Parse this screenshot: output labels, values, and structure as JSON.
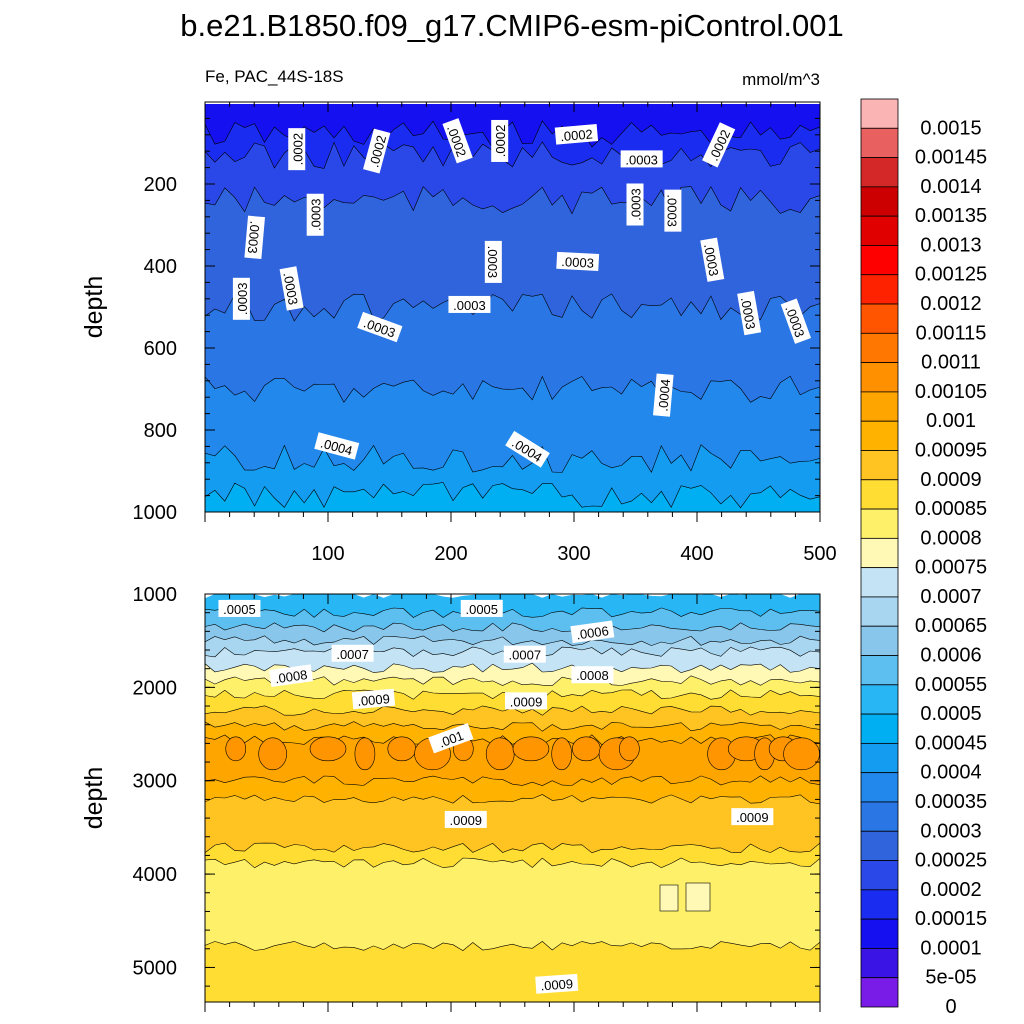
{
  "title": "b.e21.B1850.f09_g17.CMIP6-esm-piControl.001",
  "subtitle_left": "Fe, PAC_44S-18S",
  "subtitle_right": "mmol/m^3",
  "colorbar": {
    "levels": [
      "0.0015",
      "0.00145",
      "0.0014",
      "0.00135",
      "0.0013",
      "0.00125",
      "0.0012",
      "0.00115",
      "0.0011",
      "0.00105",
      "0.001",
      "0.00095",
      "0.0009",
      "0.00085",
      "0.0008",
      "0.00075",
      "0.0007",
      "0.00065",
      "0.0006",
      "0.00055",
      "0.0005",
      "0.00045",
      "0.0004",
      "0.00035",
      "0.0003",
      "0.00025",
      "0.0002",
      "0.00015",
      "0.0001",
      "5e-05",
      "0"
    ],
    "colors": [
      "#fbb4b4",
      "#e86060",
      "#d42828",
      "#cc0000",
      "#e00000",
      "#ff0000",
      "#ff2200",
      "#ff5500",
      "#ff7700",
      "#ff9000",
      "#ffa500",
      "#ffb300",
      "#ffc422",
      "#ffdd33",
      "#fff06a",
      "#fff9b5",
      "#c4e4f6",
      "#a8d6f0",
      "#88c6ec",
      "#5cbff0",
      "#28b6f4",
      "#00aef2",
      "#149cf0",
      "#2288ec",
      "#2a76e4",
      "#3064dc",
      "#2a48e8",
      "#1a2cf0",
      "#1410f0",
      "#3a14e4",
      "#7a1ce8"
    ]
  },
  "chart_data": [
    {
      "type": "contour",
      "panel": "upper",
      "ylabel": "depth",
      "xlim": [
        0,
        500
      ],
      "ylim": [
        1000,
        0
      ],
      "xticks": [
        100,
        200,
        300,
        400,
        500
      ],
      "yticks": [
        200,
        400,
        600,
        800,
        1000
      ],
      "bands": [
        {
          "depth": 5,
          "value": 0.0001,
          "color": "#1410f0"
        },
        {
          "depth": 80,
          "value": 0.00015,
          "color": "#1a2cf0"
        },
        {
          "depth": 130,
          "value": 0.0002,
          "color": "#2a48e8"
        },
        {
          "depth": 240,
          "value": 0.00025,
          "color": "#3064dc"
        },
        {
          "depth": 500,
          "value": 0.0003,
          "color": "#2a76e4"
        },
        {
          "depth": 700,
          "value": 0.00035,
          "color": "#2288ec"
        },
        {
          "depth": 870,
          "value": 0.0004,
          "color": "#149cf0"
        },
        {
          "depth": 960,
          "value": 0.00045,
          "color": "#00aef2"
        }
      ],
      "labels": [
        {
          "text": ".0002",
          "x": 75,
          "depth": 115,
          "angle": -90
        },
        {
          "text": ".0002",
          "x": 140,
          "depth": 120,
          "angle": -75
        },
        {
          "text": ".0002",
          "x": 205,
          "depth": 95,
          "angle": 70
        },
        {
          "text": ".0002",
          "x": 240,
          "depth": 95,
          "angle": -90
        },
        {
          "text": ".0002",
          "x": 302,
          "depth": 80,
          "angle": -5
        },
        {
          "text": ".0003",
          "x": 355,
          "depth": 140,
          "angle": 0
        },
        {
          "text": ".0002",
          "x": 418,
          "depth": 105,
          "angle": -65
        },
        {
          "text": ".0003",
          "x": 40,
          "depth": 330,
          "angle": 95
        },
        {
          "text": ".0003",
          "x": 90,
          "depth": 275,
          "angle": -90
        },
        {
          "text": ".0003",
          "x": 350,
          "depth": 250,
          "angle": -90
        },
        {
          "text": ".0003",
          "x": 380,
          "depth": 265,
          "angle": 90
        },
        {
          "text": ".0003",
          "x": 412,
          "depth": 385,
          "angle": 80
        },
        {
          "text": ".0003",
          "x": 234,
          "depth": 390,
          "angle": 90
        },
        {
          "text": ".0003",
          "x": 303,
          "depth": 390,
          "angle": 3
        },
        {
          "text": ".0003",
          "x": 30,
          "depth": 480,
          "angle": -90
        },
        {
          "text": ".0003",
          "x": 70,
          "depth": 455,
          "angle": 80
        },
        {
          "text": ".0003",
          "x": 215,
          "depth": 495,
          "angle": 0
        },
        {
          "text": ".0003",
          "x": 142,
          "depth": 550,
          "angle": 20
        },
        {
          "text": ".0003",
          "x": 442,
          "depth": 515,
          "angle": 80
        },
        {
          "text": ".0003",
          "x": 480,
          "depth": 535,
          "angle": 70
        },
        {
          "text": ".0004",
          "x": 373,
          "depth": 715,
          "angle": -85
        },
        {
          "text": ".0004",
          "x": 107,
          "depth": 840,
          "angle": 15
        },
        {
          "text": ".0004",
          "x": 262,
          "depth": 848,
          "angle": 32
        }
      ]
    },
    {
      "type": "contour",
      "panel": "lower",
      "ylabel": "depth",
      "xlim": [
        0,
        500
      ],
      "ylim": [
        5370,
        1000
      ],
      "yticks": [
        1000,
        2000,
        3000,
        4000,
        5000
      ],
      "bands": [
        {
          "depth": 1000,
          "value": 0.0005,
          "color": "#28b6f4"
        },
        {
          "depth": 1200,
          "value": 0.00055,
          "color": "#5cbff0"
        },
        {
          "depth": 1360,
          "value": 0.0006,
          "color": "#88c6ec"
        },
        {
          "depth": 1500,
          "value": 0.00065,
          "color": "#a8d6f0"
        },
        {
          "depth": 1620,
          "value": 0.0007,
          "color": "#c4e4f6"
        },
        {
          "depth": 1790,
          "value": 0.00075,
          "color": "#fff9b5"
        },
        {
          "depth": 1930,
          "value": 0.0008,
          "color": "#fff06a"
        },
        {
          "depth": 2080,
          "value": 0.00085,
          "color": "#ffdd33"
        },
        {
          "depth": 2250,
          "value": 0.0009,
          "color": "#ffc422"
        },
        {
          "depth": 2420,
          "value": 0.00095,
          "color": "#ffb300"
        },
        {
          "depth": 2560,
          "value": 0.001,
          "color": "#ffa500"
        },
        {
          "depth": 3000,
          "value": 0.00095,
          "color": "#ffb300"
        },
        {
          "depth": 3200,
          "value": 0.0009,
          "color": "#ffc422"
        },
        {
          "depth": 3720,
          "value": 0.00085,
          "color": "#ffdd33"
        },
        {
          "depth": 3880,
          "value": 0.0008,
          "color": "#fff06a"
        },
        {
          "depth": 4770,
          "value": 0.00085,
          "color": "#ffdd33"
        }
      ],
      "labels": [
        {
          "text": ".0005",
          "x": 28,
          "depth": 1160,
          "angle": 0
        },
        {
          "text": ".0005",
          "x": 225,
          "depth": 1160,
          "angle": 0
        },
        {
          "text": ".0006",
          "x": 315,
          "depth": 1410,
          "angle": -8
        },
        {
          "text": ".0007",
          "x": 120,
          "depth": 1640,
          "angle": 0
        },
        {
          "text": ".0007",
          "x": 260,
          "depth": 1650,
          "angle": 0
        },
        {
          "text": ".0008",
          "x": 70,
          "depth": 1880,
          "angle": -8
        },
        {
          "text": ".0008",
          "x": 315,
          "depth": 1870,
          "angle": 0
        },
        {
          "text": ".0009",
          "x": 137,
          "depth": 2130,
          "angle": -5
        },
        {
          "text": ".0009",
          "x": 261,
          "depth": 2150,
          "angle": 0
        },
        {
          "text": ".001",
          "x": 200,
          "depth": 2550,
          "angle": -20
        },
        {
          "text": ".0009",
          "x": 212,
          "depth": 3420,
          "angle": 0
        },
        {
          "text": ".0009",
          "x": 445,
          "depth": 3390,
          "angle": 0
        },
        {
          "text": ".0009",
          "x": 286,
          "depth": 5180,
          "angle": -4
        }
      ]
    }
  ]
}
